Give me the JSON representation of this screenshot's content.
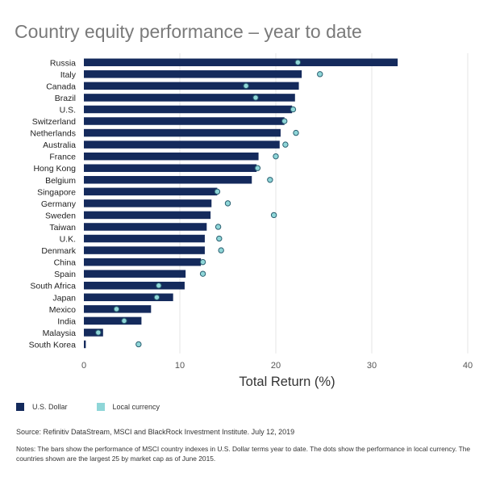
{
  "title": "Country equity performance – year to date",
  "legend": {
    "usd_label": "U.S. Dollar",
    "local_label": "Local currency"
  },
  "source": "Source: Refinitiv DataStream, MSCI and BlackRock Investment Institute. July 12, 2019",
  "notes": "Notes: The bars show the performance of MSCI country indexes in U.S. Dollar terms year to date. The dots show the performance in local currency. The countries shown are the largest 25 by market cap as of June 2015.",
  "colors": {
    "bar": "#142a5c",
    "dot_fill": "#8fd6d8",
    "dot_stroke": "#2a5f70",
    "grid": "#e4e4e4"
  },
  "chart_data": {
    "type": "bar",
    "orientation": "horizontal",
    "xlabel": "Total Return (%)",
    "ylabel": "",
    "xlim": [
      0,
      40
    ],
    "xticks": [
      0,
      10,
      20,
      30,
      40
    ],
    "grid": true,
    "legend_position": "bottom-left",
    "categories": [
      "Russia",
      "Italy",
      "Canada",
      "Brazil",
      "U.S.",
      "Switzerland",
      "Netherlands",
      "Australia",
      "France",
      "Hong Kong",
      "Belgium",
      "Singapore",
      "Germany",
      "Sweden",
      "Taiwan",
      "U.K.",
      "Denmark",
      "China",
      "Spain",
      "South Africa",
      "Japan",
      "Mexico",
      "India",
      "Malaysia",
      "South Korea"
    ],
    "series": [
      {
        "name": "U.S. Dollar",
        "marker": "bar",
        "values": [
          32.7,
          22.7,
          22.4,
          22.0,
          21.7,
          20.9,
          20.5,
          20.4,
          18.2,
          18.0,
          17.5,
          13.9,
          13.3,
          13.2,
          12.8,
          12.6,
          12.6,
          12.2,
          10.6,
          10.5,
          9.3,
          7.0,
          6.0,
          2.0,
          0.2
        ]
      },
      {
        "name": "Local currency",
        "marker": "dot",
        "values": [
          22.3,
          24.6,
          16.9,
          17.9,
          21.8,
          20.9,
          22.1,
          21.0,
          20.0,
          18.1,
          19.4,
          13.9,
          15.0,
          19.8,
          14.0,
          14.1,
          14.3,
          12.4,
          12.4,
          7.8,
          7.6,
          3.4,
          4.2,
          1.5,
          5.7
        ]
      }
    ]
  }
}
